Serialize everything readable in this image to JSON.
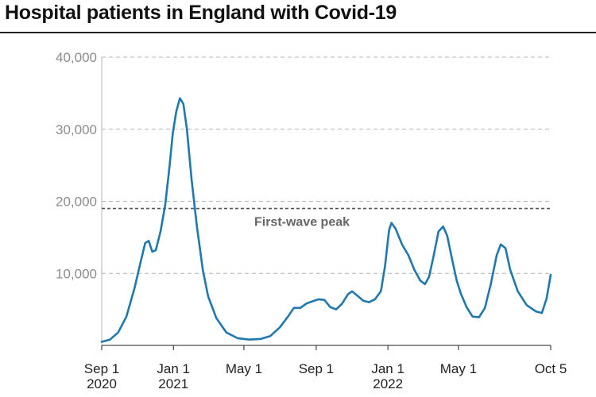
{
  "title": "Hospital patients in England with Covid-19",
  "chart_data": {
    "type": "line",
    "title": "Hospital patients in England with Covid-19",
    "xlabel": "",
    "ylabel": "",
    "ylim": [
      0,
      40000
    ],
    "xlim": [
      "2020-09-01",
      "2022-10-05"
    ],
    "grid": true,
    "line_color": "#1f78b0",
    "y_ticks": [
      {
        "value": 10000,
        "label": "10,000"
      },
      {
        "value": 20000,
        "label": "20,000"
      },
      {
        "value": 30000,
        "label": "30,000"
      },
      {
        "value": 40000,
        "label": "40,000"
      }
    ],
    "x_ticks": [
      {
        "date": "2020-09-01",
        "line1": "Sep 1",
        "line2": "2020"
      },
      {
        "date": "2021-01-01",
        "line1": "Jan 1",
        "line2": "2021"
      },
      {
        "date": "2021-05-01",
        "line1": "May 1",
        "line2": ""
      },
      {
        "date": "2021-09-01",
        "line1": "Sep 1",
        "line2": ""
      },
      {
        "date": "2022-01-01",
        "line1": "Jan 1",
        "line2": "2022"
      },
      {
        "date": "2022-05-01",
        "line1": "May 1",
        "line2": ""
      },
      {
        "date": "2022-10-05",
        "line1": "Oct 5",
        "line2": ""
      }
    ],
    "reference_line": {
      "label": "First-wave peak",
      "value": 19000
    },
    "series": [
      {
        "name": "",
        "points": [
          [
            "2020-09-01",
            500
          ],
          [
            "2020-09-15",
            800
          ],
          [
            "2020-09-29",
            1800
          ],
          [
            "2020-10-13",
            4000
          ],
          [
            "2020-10-27",
            8000
          ],
          [
            "2020-11-06",
            11500
          ],
          [
            "2020-11-14",
            14200
          ],
          [
            "2020-11-20",
            14500
          ],
          [
            "2020-11-26",
            13000
          ],
          [
            "2020-12-02",
            13200
          ],
          [
            "2020-12-10",
            15800
          ],
          [
            "2020-12-18",
            19500
          ],
          [
            "2020-12-25",
            24500
          ],
          [
            "2020-12-31",
            29500
          ],
          [
            "2021-01-06",
            32500
          ],
          [
            "2021-01-12",
            34300
          ],
          [
            "2021-01-18",
            33500
          ],
          [
            "2021-01-24",
            30000
          ],
          [
            "2021-02-01",
            23000
          ],
          [
            "2021-02-10",
            16500
          ],
          [
            "2021-02-20",
            10500
          ],
          [
            "2021-03-01",
            6800
          ],
          [
            "2021-03-15",
            3800
          ],
          [
            "2021-04-01",
            1800
          ],
          [
            "2021-04-20",
            1000
          ],
          [
            "2021-05-10",
            800
          ],
          [
            "2021-05-30",
            900
          ],
          [
            "2021-06-15",
            1300
          ],
          [
            "2021-07-01",
            2500
          ],
          [
            "2021-07-15",
            4000
          ],
          [
            "2021-07-25",
            5200
          ],
          [
            "2021-08-05",
            5200
          ],
          [
            "2021-08-15",
            5800
          ],
          [
            "2021-08-25",
            6100
          ],
          [
            "2021-09-05",
            6400
          ],
          [
            "2021-09-15",
            6300
          ],
          [
            "2021-09-25",
            5300
          ],
          [
            "2021-10-05",
            5000
          ],
          [
            "2021-10-15",
            5800
          ],
          [
            "2021-10-25",
            7100
          ],
          [
            "2021-11-01",
            7500
          ],
          [
            "2021-11-10",
            6900
          ],
          [
            "2021-11-20",
            6200
          ],
          [
            "2021-11-30",
            6000
          ],
          [
            "2021-12-10",
            6400
          ],
          [
            "2021-12-20",
            7500
          ],
          [
            "2021-12-27",
            11000
          ],
          [
            "2022-01-03",
            16000
          ],
          [
            "2022-01-07",
            17000
          ],
          [
            "2022-01-14",
            16200
          ],
          [
            "2022-01-25",
            14000
          ],
          [
            "2022-02-05",
            12500
          ],
          [
            "2022-02-15",
            10500
          ],
          [
            "2022-02-25",
            9000
          ],
          [
            "2022-03-05",
            8500
          ],
          [
            "2022-03-12",
            9500
          ],
          [
            "2022-03-20",
            12500
          ],
          [
            "2022-03-28",
            15800
          ],
          [
            "2022-04-05",
            16500
          ],
          [
            "2022-04-12",
            15200
          ],
          [
            "2022-04-20",
            12000
          ],
          [
            "2022-04-28",
            9000
          ],
          [
            "2022-05-05",
            7200
          ],
          [
            "2022-05-15",
            5300
          ],
          [
            "2022-05-25",
            4000
          ],
          [
            "2022-06-05",
            3900
          ],
          [
            "2022-06-15",
            5200
          ],
          [
            "2022-06-25",
            8500
          ],
          [
            "2022-07-05",
            12500
          ],
          [
            "2022-07-12",
            14000
          ],
          [
            "2022-07-20",
            13500
          ],
          [
            "2022-07-28",
            10500
          ],
          [
            "2022-08-10",
            7500
          ],
          [
            "2022-08-25",
            5600
          ],
          [
            "2022-09-10",
            4700
          ],
          [
            "2022-09-20",
            4500
          ],
          [
            "2022-09-28",
            6500
          ],
          [
            "2022-10-05",
            9800
          ]
        ]
      }
    ]
  }
}
